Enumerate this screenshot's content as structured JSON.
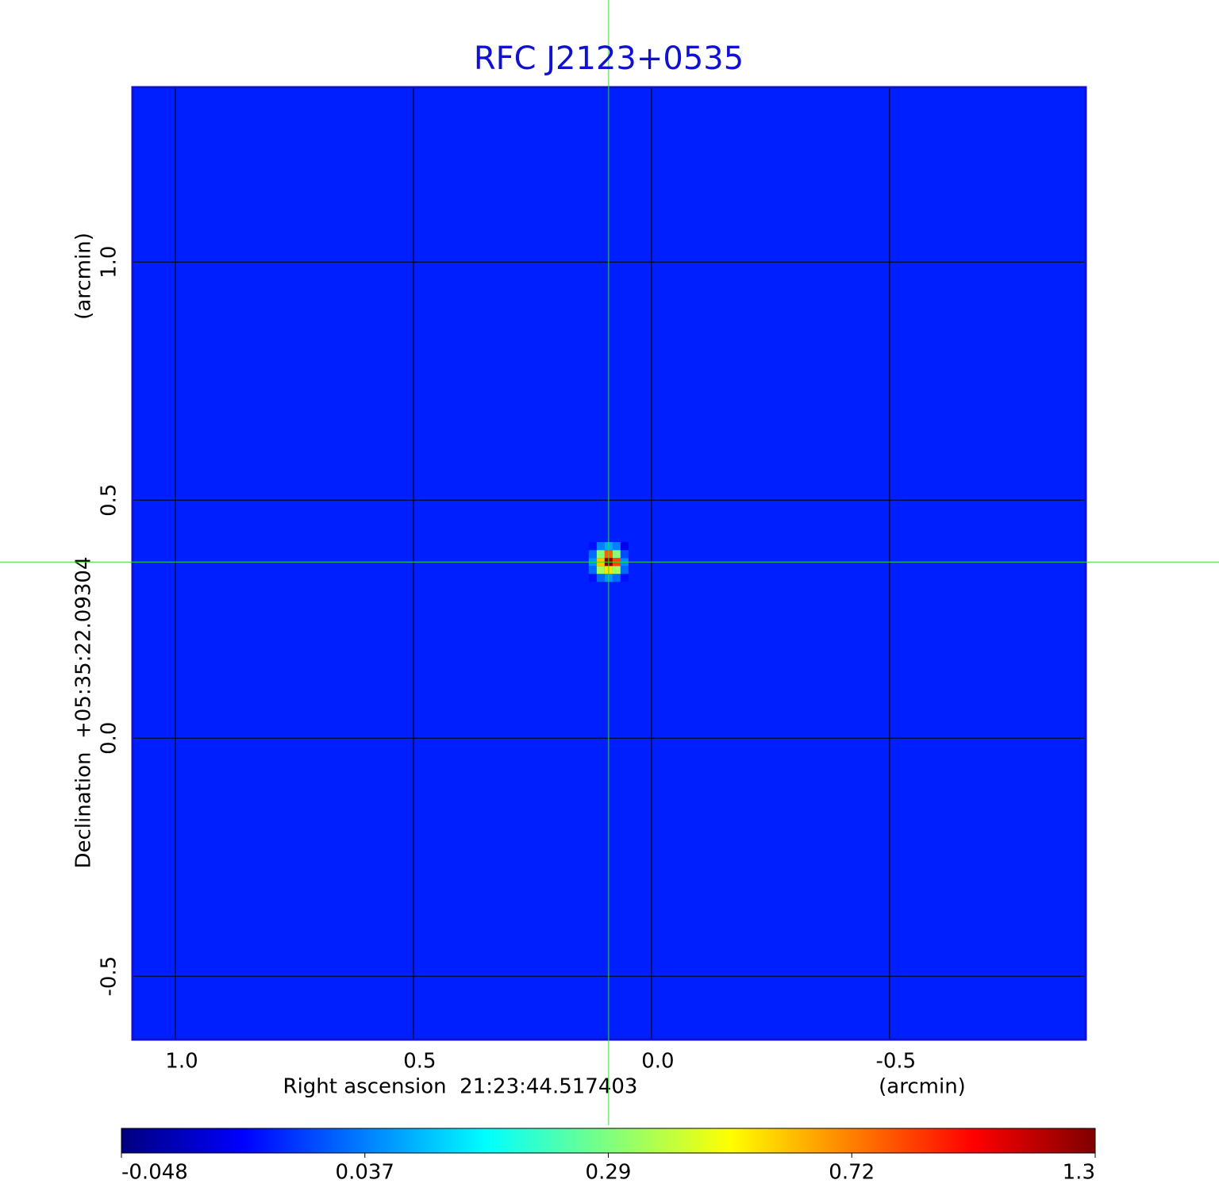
{
  "chart_data": {
    "type": "image",
    "title": "RFC J2123+0535",
    "x_label": "Right ascension  21:23:44.517403",
    "x_unit": "(arcmin)",
    "y_label": "Declination  +05:35:22.09304",
    "y_unit": "(arcmin)",
    "xlim": [
      1.09,
      -0.912
    ],
    "ylim": [
      -0.633,
      1.367
    ],
    "xticks": [
      {
        "value": 1,
        "label": "1.0"
      },
      0.5,
      {
        "value": 0,
        "label": "0.0"
      },
      -0.5
    ],
    "yticks": [
      {
        "value": -0.5,
        "label": "-0.5"
      },
      {
        "value": 0,
        "label": "0.0"
      },
      0.5,
      {
        "value": 1,
        "label": "1.0"
      }
    ],
    "grid": true,
    "crosshair": {
      "x": 0.09,
      "y": 0.37,
      "color": "#33dd33"
    },
    "image": {
      "background": 0.005,
      "center": [
        0.09,
        0.37
      ],
      "pixel_size": 0.0167,
      "values": [
        [
          0.0,
          0.03,
          0.06,
          0.03,
          0.0
        ],
        [
          0.03,
          0.35,
          0.55,
          0.35,
          0.03
        ],
        [
          0.06,
          0.6,
          1.3,
          0.85,
          0.05
        ],
        [
          0.03,
          0.3,
          0.8,
          0.3,
          0.02
        ],
        [
          0.0,
          0.04,
          0.08,
          0.04,
          -0.01
        ]
      ]
    },
    "colorbar_ticks": [
      -0.048,
      0.037,
      0.29,
      0.72,
      1.3
    ],
    "colormap": [
      "#00007f",
      "#0000ff",
      "#007fff",
      "#00ffff",
      "#7fff7f",
      "#ffff00",
      "#ff7f00",
      "#ff0000",
      "#7f0000"
    ],
    "frame_color": "#1010d0"
  }
}
